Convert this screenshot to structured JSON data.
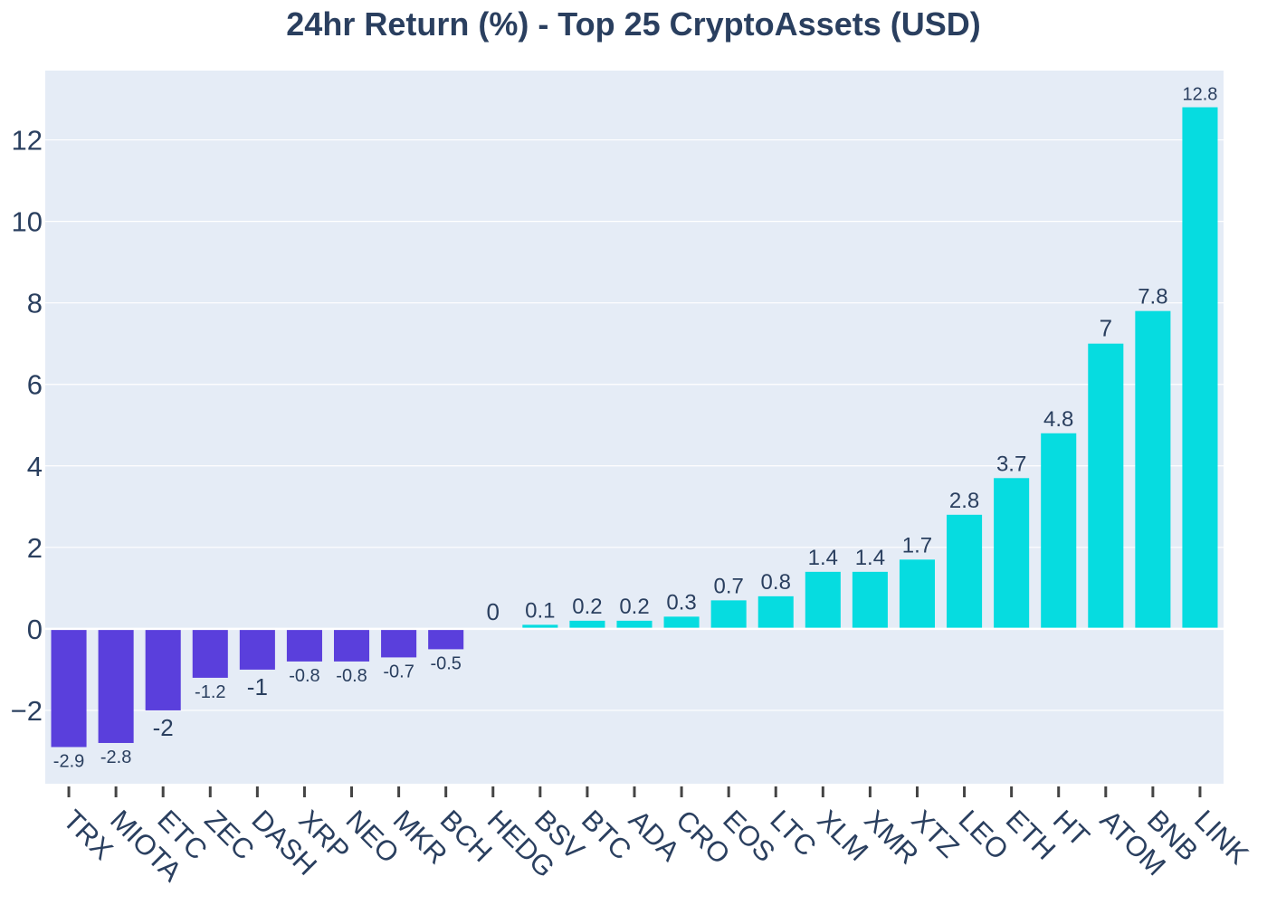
{
  "chart_data": {
    "type": "bar",
    "title": "24hr Return (%) - Top 25 CryptoAssets (USD)",
    "xlabel": "",
    "ylabel": "",
    "categories": [
      "TRX",
      "MIOTA",
      "ETC",
      "ZEC",
      "DASH",
      "XRP",
      "NEO",
      "MKR",
      "BCH",
      "HEDG",
      "BSV",
      "BTC",
      "ADA",
      "CRO",
      "EOS",
      "LTC",
      "XLM",
      "XMR",
      "XTZ",
      "LEO",
      "ETH",
      "HT",
      "ATOM",
      "BNB",
      "LINK"
    ],
    "values": [
      -2.9,
      -2.8,
      -2.0,
      -1.2,
      -1.0,
      -0.8,
      -0.8,
      -0.7,
      -0.5,
      0.0,
      0.1,
      0.2,
      0.2,
      0.3,
      0.7,
      0.8,
      1.4,
      1.4,
      1.7,
      2.8,
      3.7,
      4.8,
      7.0,
      7.8,
      12.8
    ],
    "data_labels": [
      "-2.9",
      "-2.8",
      "-2",
      "-1.2",
      "-1",
      "-0.8",
      "-0.8",
      "-0.7",
      "-0.5",
      "0",
      "0.1",
      "0.2",
      "0.2",
      "0.3",
      "0.7",
      "0.8",
      "1.4",
      "1.4",
      "1.7",
      "2.8",
      "3.7",
      "4.8",
      "7",
      "7.8",
      "12.8"
    ],
    "ylim": [
      -3.8,
      13.7
    ],
    "yticks": [
      -2,
      0,
      2,
      4,
      6,
      8,
      10,
      12
    ],
    "ytick_labels": [
      "−2",
      "0",
      "2",
      "4",
      "6",
      "8",
      "10",
      "12"
    ],
    "grid": true,
    "legend": "none",
    "colors": {
      "negative": "#5a3fdc",
      "positive": "#06dce0",
      "plot_background": "#e5ecf6",
      "grid": "#ffffff",
      "text": "#2a3f5f"
    }
  }
}
